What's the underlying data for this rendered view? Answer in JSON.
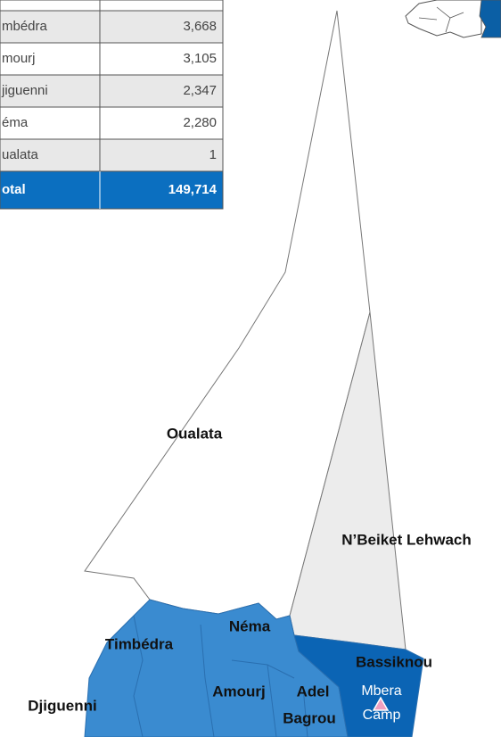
{
  "table": {
    "rows": [
      [
        "mbédra",
        "3,668"
      ],
      [
        "mourj",
        "3,105"
      ],
      [
        "jiguenni",
        "2,347"
      ],
      [
        "éma",
        "2,280"
      ],
      [
        "ualata",
        "1"
      ]
    ],
    "total": [
      "otal",
      "149,714"
    ]
  },
  "map": {
    "labels": {
      "oualata": "Oualata",
      "nbeiket": "N’Beiket Lehwach",
      "nema": "Néma",
      "timbedra": "Timbédra",
      "bassiknou": "Bassiknou",
      "amourj": "Amourj",
      "adel": "Adel",
      "bagrou": "Bagrou",
      "mbera1": "Mbera",
      "mbera2": "Camp",
      "djiguenni": "Djiguenni"
    }
  }
}
